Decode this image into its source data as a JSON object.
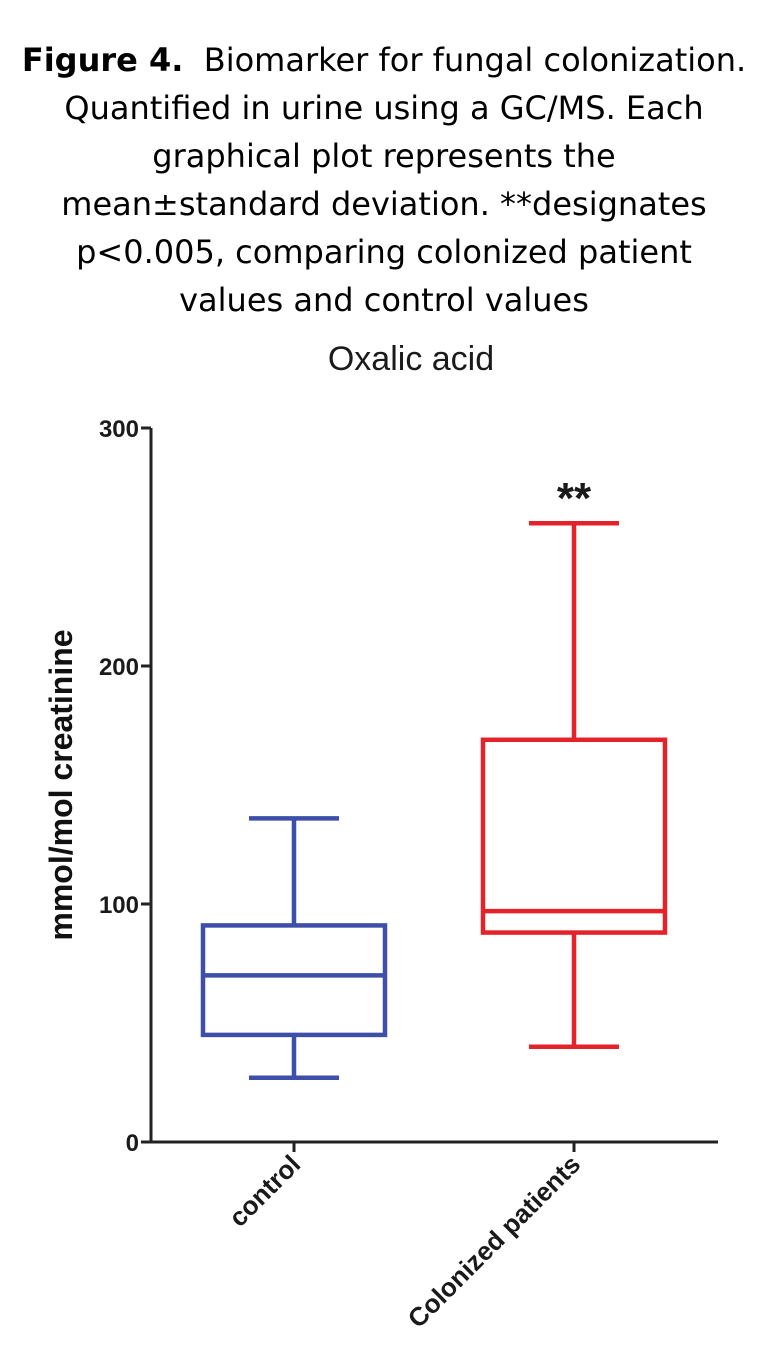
{
  "caption": {
    "label": "Figure 4.",
    "text": "Biomarker for fungal colonization.  Quantified in urine using a GC/MS.  Each graphical plot represents the mean±standard deviation. **designates p<0.005, comparing colonized patient values and control values"
  },
  "chart_data": {
    "type": "box",
    "title": "Oxalic acid",
    "ylabel": "mmol/mol creatinine",
    "xlabel": "",
    "ylim": [
      0,
      300
    ],
    "yticks": [
      0,
      100,
      200,
      300
    ],
    "y_tick_labels": [
      "0",
      "100",
      "200",
      "300"
    ],
    "grid": false,
    "categories": [
      "control",
      "Colonized patients"
    ],
    "boxes": [
      {
        "category": "control",
        "whisker_low": 27,
        "q1": 45,
        "median": 70,
        "q3": 91,
        "whisker_high": 136,
        "color": "#3d4fa8"
      },
      {
        "category": "Colonized patients",
        "whisker_low": 40,
        "q1": 88,
        "median": 97,
        "q3": 169,
        "whisker_high": 260,
        "color": "#e3222a",
        "annotation": "**"
      }
    ]
  }
}
